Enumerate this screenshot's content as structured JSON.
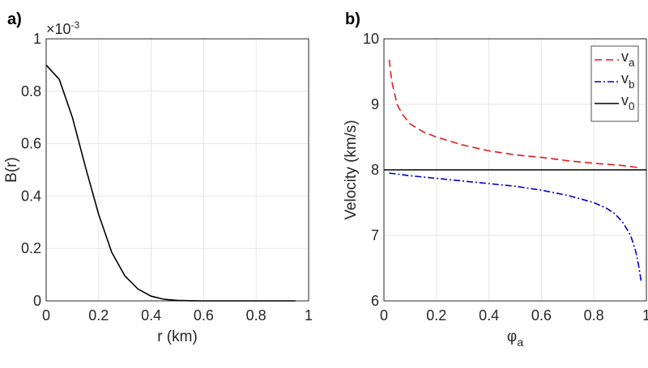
{
  "chart_data": [
    {
      "type": "line",
      "panel_label": "a)",
      "xlabel": "r (km)",
      "ylabel": "B(r)",
      "y_multiplier": "×10^-3",
      "xlim": [
        0,
        1
      ],
      "ylim": [
        0,
        1
      ],
      "xticks": [
        "0",
        "0.2",
        "0.4",
        "0.6",
        "0.8",
        "1"
      ],
      "yticks": [
        "0",
        "0.2",
        "0.4",
        "0.6",
        "0.8",
        "1"
      ],
      "grid": true,
      "series": [
        {
          "color": "#000000",
          "style": "solid",
          "x": [
            0,
            0.05,
            0.1,
            0.15,
            0.2,
            0.25,
            0.3,
            0.35,
            0.4,
            0.45,
            0.5,
            0.55,
            0.6,
            0.65,
            0.7,
            0.75,
            0.8,
            0.85,
            0.9,
            0.95
          ],
          "y": [
            0.9,
            0.845,
            0.7,
            0.51,
            0.33,
            0.185,
            0.095,
            0.045,
            0.018,
            0.006,
            0.002,
            0.0005,
            0,
            0,
            0,
            0,
            0,
            0,
            0,
            0
          ]
        }
      ]
    },
    {
      "type": "line",
      "panel_label": "b)",
      "xlabel": "φ_a",
      "ylabel": "Velocity (km/s)",
      "xlim": [
        0,
        1
      ],
      "ylim": [
        6,
        10
      ],
      "xticks": [
        "0",
        "0.2",
        "0.4",
        "0.6",
        "0.8",
        "1"
      ],
      "yticks": [
        "6",
        "7",
        "8",
        "9",
        "10"
      ],
      "grid": true,
      "legend": "top-right",
      "series": [
        {
          "name": "v_a",
          "color": "#e41a1c",
          "style": "dashed",
          "x": [
            0.02,
            0.03,
            0.05,
            0.07,
            0.1,
            0.15,
            0.2,
            0.3,
            0.4,
            0.5,
            0.6,
            0.7,
            0.8,
            0.9,
            0.98
          ],
          "y": [
            9.68,
            9.35,
            9.0,
            8.85,
            8.7,
            8.58,
            8.5,
            8.38,
            8.29,
            8.23,
            8.19,
            8.14,
            8.1,
            8.07,
            8.03
          ]
        },
        {
          "name": "v_b",
          "color": "#0000cc",
          "style": "dashdot",
          "x": [
            0.02,
            0.1,
            0.2,
            0.3,
            0.4,
            0.5,
            0.6,
            0.7,
            0.8,
            0.85,
            0.88,
            0.91,
            0.94,
            0.96,
            0.97,
            0.98
          ],
          "y": [
            7.95,
            7.91,
            7.87,
            7.83,
            7.79,
            7.75,
            7.69,
            7.61,
            7.5,
            7.41,
            7.33,
            7.2,
            7.0,
            6.75,
            6.55,
            6.3
          ]
        },
        {
          "name": "v_0",
          "color": "#000000",
          "style": "solid",
          "x": [
            0,
            1
          ],
          "y": [
            8,
            8
          ]
        }
      ]
    }
  ]
}
